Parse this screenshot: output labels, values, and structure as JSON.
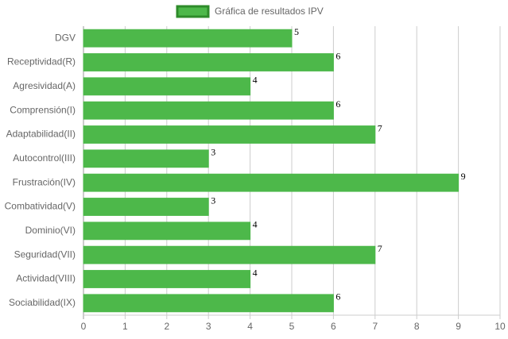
{
  "chart_data": {
    "type": "bar",
    "orientation": "horizontal",
    "legend": "Gráfica de resultados IPV",
    "color": "#4db84a",
    "border_color": "#2e8b2a",
    "categories": [
      "DGV",
      "Receptividad(R)",
      "Agresividad(A)",
      "Comprensión(I)",
      "Adaptabilidad(II)",
      "Autocontrol(III)",
      "Frustración(IV)",
      "Combatividad(V)",
      "Dominio(VI)",
      "Seguridad(VII)",
      "Actividad(VIII)",
      "Sociabilidad(IX)"
    ],
    "values": [
      5,
      6,
      4,
      6,
      7,
      3,
      9,
      3,
      4,
      7,
      4,
      6
    ],
    "xlim": [
      0,
      10
    ],
    "xticks": [
      0,
      1,
      2,
      3,
      4,
      5,
      6,
      7,
      8,
      9,
      10
    ],
    "grid": true
  }
}
